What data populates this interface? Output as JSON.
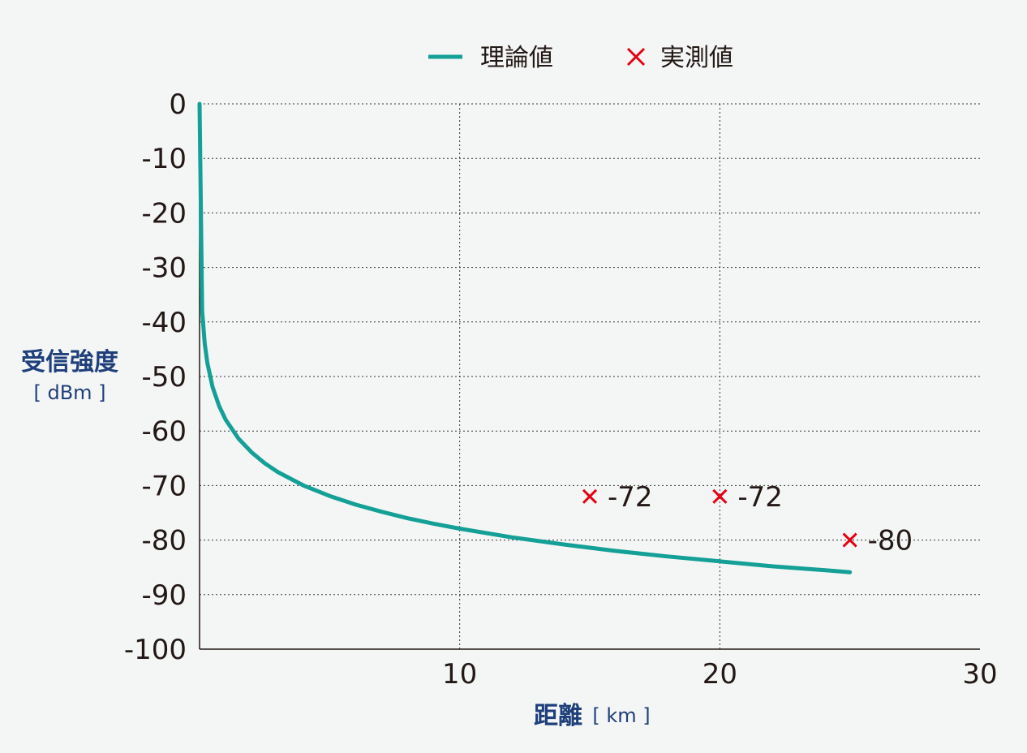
{
  "chart_data": {
    "type": "line",
    "legend": {
      "placement": "top-center",
      "entries": [
        {
          "name": "理論値",
          "marker": "line",
          "color": "#14a096"
        },
        {
          "name": "実測値",
          "marker": "cross",
          "color": "#e50012"
        }
      ]
    },
    "y_axis": {
      "title": "受信強度",
      "unit": "[ dBm ]",
      "range": [
        -100,
        0
      ],
      "ticks": [
        0,
        -10,
        -20,
        -30,
        -40,
        -50,
        -60,
        -70,
        -80,
        -90,
        -100
      ],
      "tick_labels": [
        "0",
        "-10",
        "-20",
        "-30",
        "-40",
        "-50",
        "-60",
        "-70",
        "-80",
        "-90",
        "-100"
      ]
    },
    "x_axis": {
      "title": "距離",
      "unit": "[ km ]",
      "range": [
        0,
        30
      ],
      "ticks": [
        10,
        20,
        30
      ],
      "tick_labels": [
        "10",
        "20",
        "30"
      ]
    },
    "grid": true,
    "series": [
      {
        "name": "理論値",
        "kind": "line",
        "color": "#14a096",
        "x": [
          0,
          0.1,
          0.2,
          0.3,
          0.5,
          0.75,
          1,
          1.5,
          2,
          2.5,
          3,
          4,
          5,
          6,
          7,
          8,
          9,
          10,
          12,
          14,
          16,
          18,
          20,
          22,
          24,
          25
        ],
        "y": [
          0,
          -38,
          -44,
          -47.5,
          -51.9,
          -55.4,
          -57.9,
          -61.4,
          -63.9,
          -65.9,
          -67.5,
          -70,
          -71.9,
          -73.5,
          -74.8,
          -76,
          -77,
          -77.9,
          -79.5,
          -80.8,
          -82,
          -83,
          -83.9,
          -84.8,
          -85.5,
          -85.9
        ]
      },
      {
        "name": "実測値",
        "kind": "scatter",
        "marker": "cross",
        "color": "#e50012",
        "x": [
          15,
          20,
          25
        ],
        "y": [
          -72,
          -72,
          -80
        ],
        "labels": [
          "-72",
          "-72",
          "-80"
        ]
      }
    ]
  }
}
